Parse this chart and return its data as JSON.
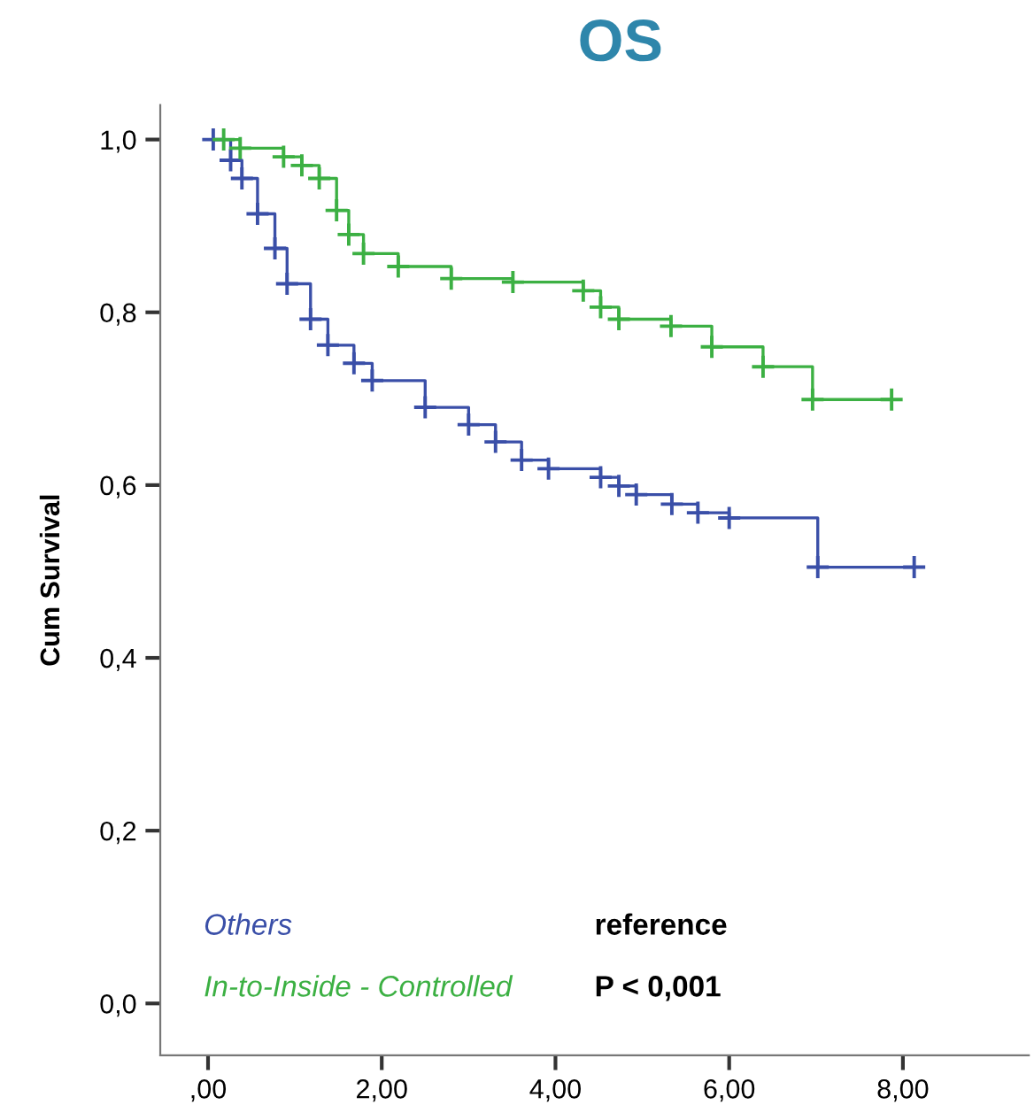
{
  "chart_data": {
    "type": "step",
    "title": "OS",
    "ylabel": "Cum Survival",
    "xlim": [
      -0.55,
      9.45
    ],
    "ylim": [
      -0.06,
      1.04
    ],
    "xticks": [
      {
        "value": 0,
        "label": ",00"
      },
      {
        "value": 2,
        "label": "2,00"
      },
      {
        "value": 4,
        "label": "4,00"
      },
      {
        "value": 6,
        "label": "6,00"
      },
      {
        "value": 8,
        "label": "8,00"
      }
    ],
    "yticks": [
      {
        "value": 0,
        "label": "0,0"
      },
      {
        "value": 0.2,
        "label": "0,2"
      },
      {
        "value": 0.4,
        "label": "0,4"
      },
      {
        "value": 0.6,
        "label": "0,6"
      },
      {
        "value": 0.8,
        "label": "0,8"
      },
      {
        "value": 1.0,
        "label": "1,0"
      }
    ],
    "grid": false,
    "marker": "cross",
    "line_style": "solid",
    "series": [
      {
        "name": "Others",
        "color": "#3a4fa8",
        "x": [
          0.06,
          0.26,
          0.39,
          0.57,
          0.77,
          0.91,
          1.18,
          1.38,
          1.68,
          1.89,
          2.5,
          3.0,
          3.31,
          3.61,
          3.92,
          4.52,
          4.73,
          4.93,
          5.34,
          5.64,
          6.0,
          7.02,
          8.13
        ],
        "values": [
          1.0,
          0.976,
          0.955,
          0.914,
          0.874,
          0.833,
          0.792,
          0.762,
          0.741,
          0.721,
          0.69,
          0.67,
          0.65,
          0.629,
          0.619,
          0.609,
          0.599,
          0.589,
          0.578,
          0.568,
          0.562,
          0.505,
          0.505
        ]
      },
      {
        "name": "In-to-Inside - Controlled",
        "color": "#3cb043",
        "x": [
          0.18,
          0.37,
          0.87,
          1.08,
          1.28,
          1.48,
          1.62,
          1.79,
          2.19,
          2.8,
          3.51,
          4.32,
          4.52,
          4.73,
          5.33,
          5.8,
          6.39,
          6.96,
          7.87
        ],
        "values": [
          1.0,
          0.99,
          0.98,
          0.97,
          0.955,
          0.918,
          0.89,
          0.868,
          0.853,
          0.839,
          0.835,
          0.825,
          0.806,
          0.792,
          0.784,
          0.76,
          0.737,
          0.699,
          0.699
        ]
      }
    ],
    "annotations": [
      "reference",
      "P < 0,001"
    ]
  }
}
